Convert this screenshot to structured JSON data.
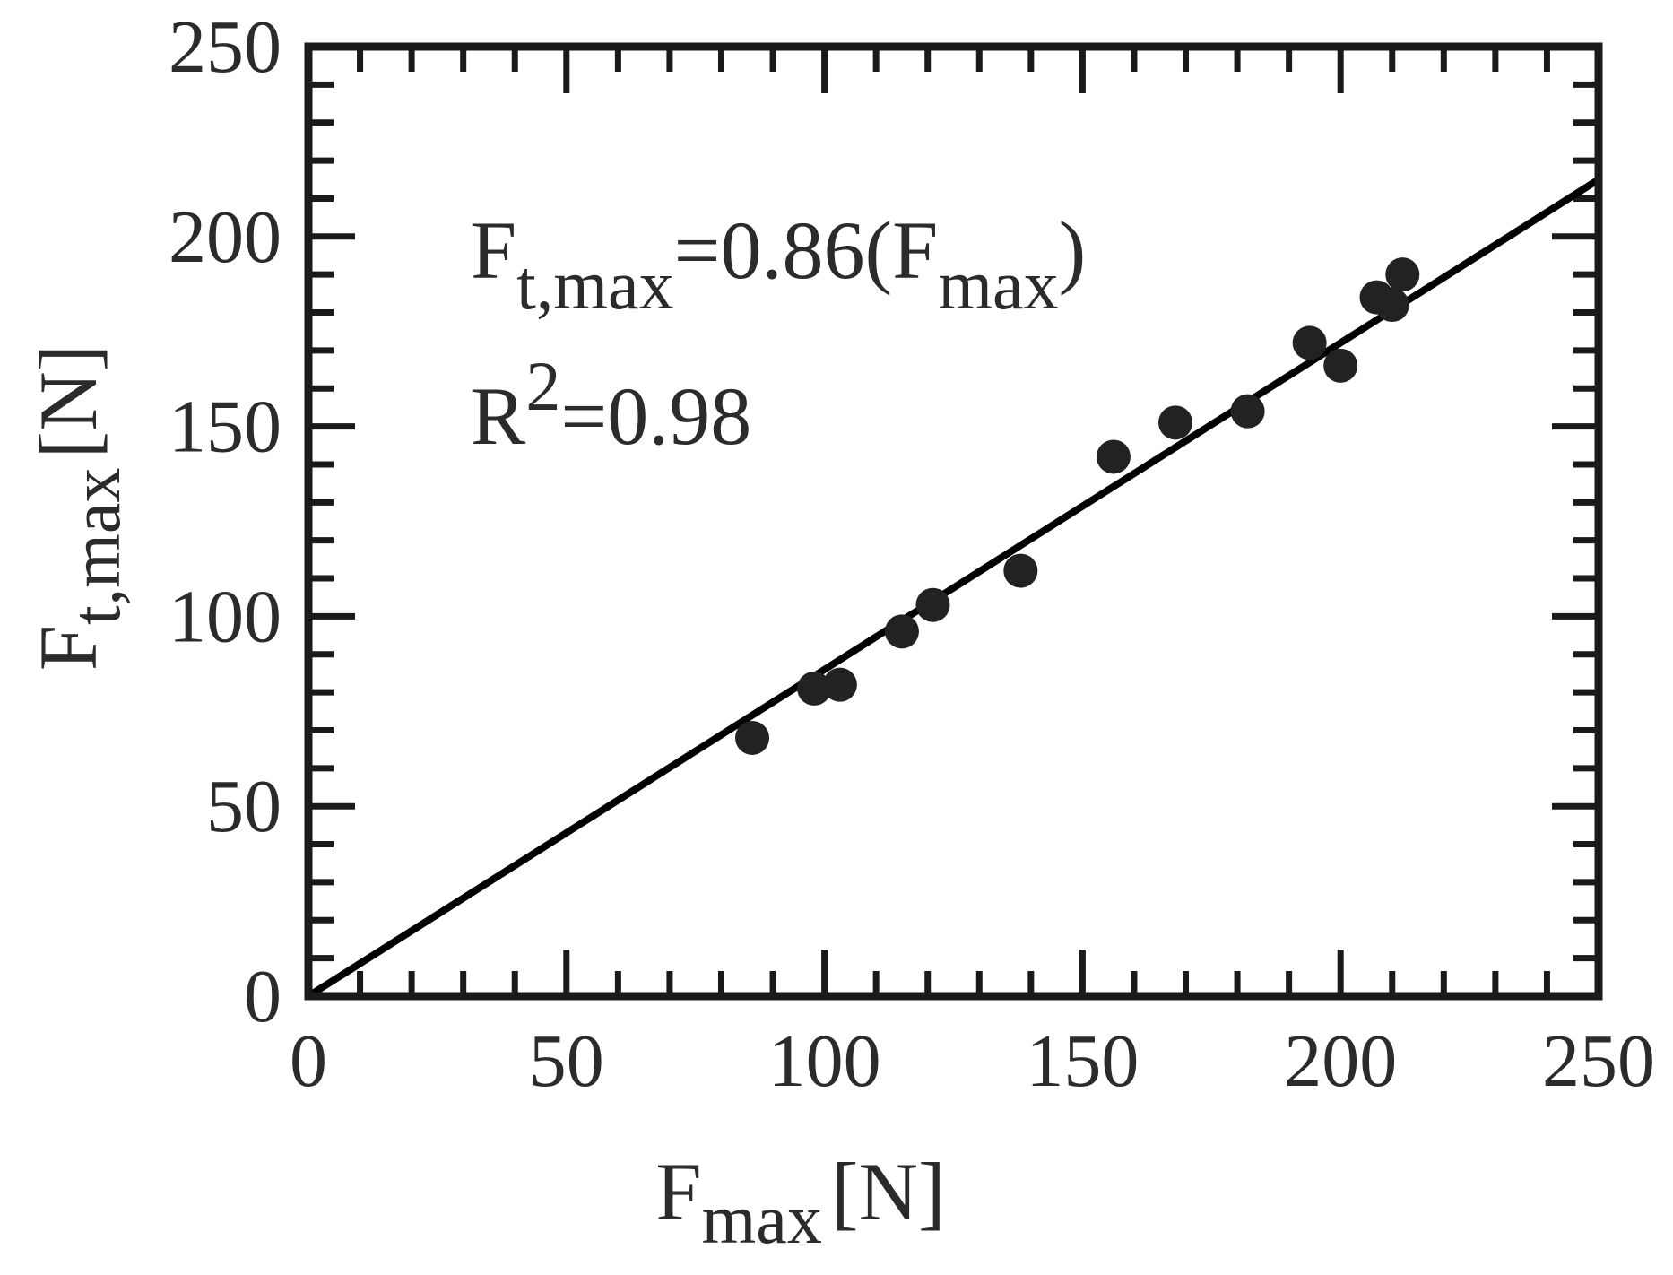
{
  "chart_data": {
    "type": "scatter",
    "title": "",
    "xlabel": {
      "main": "F",
      "sub": "max",
      "unit": "[N]"
    },
    "ylabel": {
      "main": "F",
      "sub": "t,max",
      "unit": "[N]"
    },
    "xlim": [
      0,
      250
    ],
    "ylim": [
      0,
      250
    ],
    "x_ticks": [
      0,
      50,
      100,
      150,
      200,
      250
    ],
    "y_ticks": [
      0,
      50,
      100,
      150,
      200,
      250
    ],
    "x_tick_labels": [
      "0",
      "50",
      "100",
      "150",
      "200",
      "250"
    ],
    "y_tick_labels": [
      "0",
      "50",
      "100",
      "150",
      "200",
      "250"
    ],
    "minor_tick_step": 10,
    "grid": false,
    "series": [
      {
        "marker": "filled-circle",
        "color": "#222222",
        "x": [
          86,
          98,
          103,
          115,
          121,
          138,
          156,
          168,
          182,
          194,
          200,
          207,
          210,
          212
        ],
        "y": [
          68,
          81,
          82,
          96,
          103,
          112,
          142,
          151,
          154,
          172,
          166,
          184,
          182,
          190
        ]
      }
    ],
    "fit_line": {
      "slope": 0.86,
      "intercept": 0,
      "x_range": [
        0,
        250
      ],
      "color": "#000000"
    },
    "annotations": {
      "equation": {
        "lhs": "F",
        "lhs_sub": "t,max",
        "mid": "=0.86(F",
        "mid_sub": "max",
        "end": ")"
      },
      "r2": {
        "main": "R",
        "sup": "2",
        "rest": "=0.98"
      }
    }
  }
}
